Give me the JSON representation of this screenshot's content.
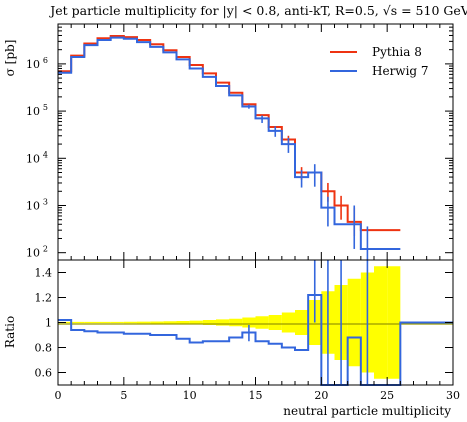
{
  "chart_data": {
    "type": "histogram-step",
    "title": "Jet particle multiplicity for |y| < 0.8, anti-kT, R=0.5, √s = 510 GeV",
    "xlabel": "neutral particle multiplicity",
    "ylabel": "σ [pb]",
    "ratio_ylabel": "Ratio",
    "xlim": [
      0,
      30
    ],
    "ylim": [
      70,
      7000000
    ],
    "ylog": true,
    "ratio_ylim": [
      0.5,
      1.5
    ],
    "x_ticks": [
      "0",
      "5",
      "10",
      "15",
      "20",
      "25",
      "30"
    ],
    "y_ticks": [
      {
        "base": "10",
        "exp": "6",
        "value": 1000000
      },
      {
        "base": "10",
        "exp": "5",
        "value": 100000
      },
      {
        "base": "10",
        "exp": "4",
        "value": 10000
      },
      {
        "base": "10",
        "exp": "3",
        "value": 1000
      },
      {
        "base": "10",
        "exp": "2",
        "value": 100
      }
    ],
    "ratio_ticks": [
      "1.4",
      "1.2",
      "1",
      "0.8",
      "0.6"
    ],
    "legend_position": "top-right",
    "bin_edges": [
      0,
      1,
      2,
      3,
      4,
      5,
      6,
      7,
      8,
      9,
      10,
      11,
      12,
      13,
      14,
      15,
      16,
      17,
      18,
      19,
      20,
      21,
      22,
      23,
      24,
      25,
      26
    ],
    "series": [
      {
        "name": "Pythia 8",
        "color": "#ee3311",
        "values": [
          700000,
          1500000,
          2700000,
          3500000,
          3900000,
          3700000,
          3200000,
          2600000,
          1950000,
          1400000,
          950000,
          630000,
          400000,
          245000,
          140000,
          82000,
          46000,
          25000,
          5000,
          5000,
          2000,
          1000,
          450.0,
          300,
          300,
          300
        ]
      },
      {
        "name": "Herwig 7",
        "color": "#3366dd",
        "values": [
          650000,
          1400000,
          2500000,
          3200000,
          3600000,
          3400000,
          2900000,
          2300000,
          1750000,
          1250000,
          800000,
          530000,
          340000,
          215000,
          125000,
          70000,
          38000,
          20000,
          4000,
          5000,
          900,
          400,
          400,
          120,
          120,
          120
        ]
      }
    ],
    "ratio_values": [
      1.02,
      0.94,
      0.93,
      0.92,
      0.92,
      0.91,
      0.91,
      0.9,
      0.9,
      0.87,
      0.84,
      0.85,
      0.85,
      0.88,
      0.92,
      0.85,
      0.83,
      0.8,
      0.78,
      1.22,
      0.45,
      0.4,
      0.88,
      0.4,
      0.4,
      0.4
    ],
    "band_half_width": [
      0.005,
      0.005,
      0.005,
      0.005,
      0.005,
      0.006,
      0.007,
      0.008,
      0.01,
      0.012,
      0.015,
      0.02,
      0.025,
      0.03,
      0.04,
      0.05,
      0.06,
      0.08,
      0.1,
      0.18,
      0.25,
      0.3,
      0.35,
      0.4,
      0.45,
      0.45
    ]
  }
}
